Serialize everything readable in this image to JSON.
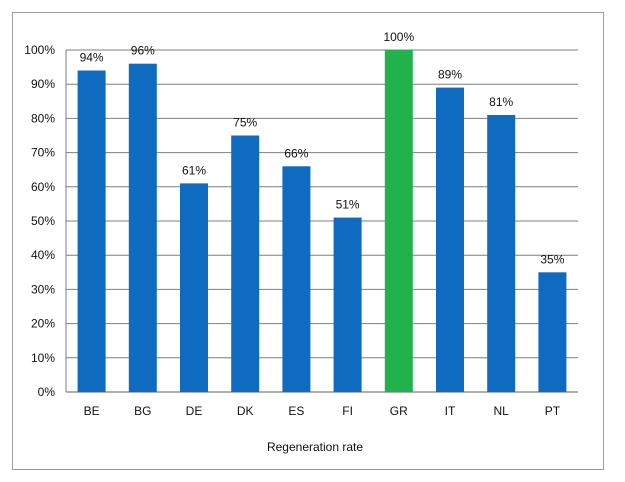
{
  "chart_data": {
    "type": "bar",
    "categories": [
      "BE",
      "BG",
      "DE",
      "DK",
      "ES",
      "FI",
      "GR",
      "IT",
      "NL",
      "PT"
    ],
    "values": [
      94,
      96,
      61,
      75,
      66,
      51,
      100,
      89,
      81,
      35
    ],
    "data_labels": [
      "94%",
      "96%",
      "61%",
      "75%",
      "66%",
      "51%",
      "100%",
      "89%",
      "81%",
      "35%"
    ],
    "y_ticks": [
      "0%",
      "10%",
      "20%",
      "30%",
      "40%",
      "50%",
      "60%",
      "70%",
      "80%",
      "90%",
      "100%"
    ],
    "ylim": [
      0,
      100
    ],
    "xlabel": "Regeneration rate",
    "ylabel": "",
    "title": "",
    "grid": true,
    "legend": "none",
    "colors": {
      "default_bar": "#0f6bbf",
      "highlight_bar": "#22b24c",
      "gridline": "#7f7f7f",
      "frame": "#9a9a9a"
    },
    "highlight_category": "GR"
  }
}
